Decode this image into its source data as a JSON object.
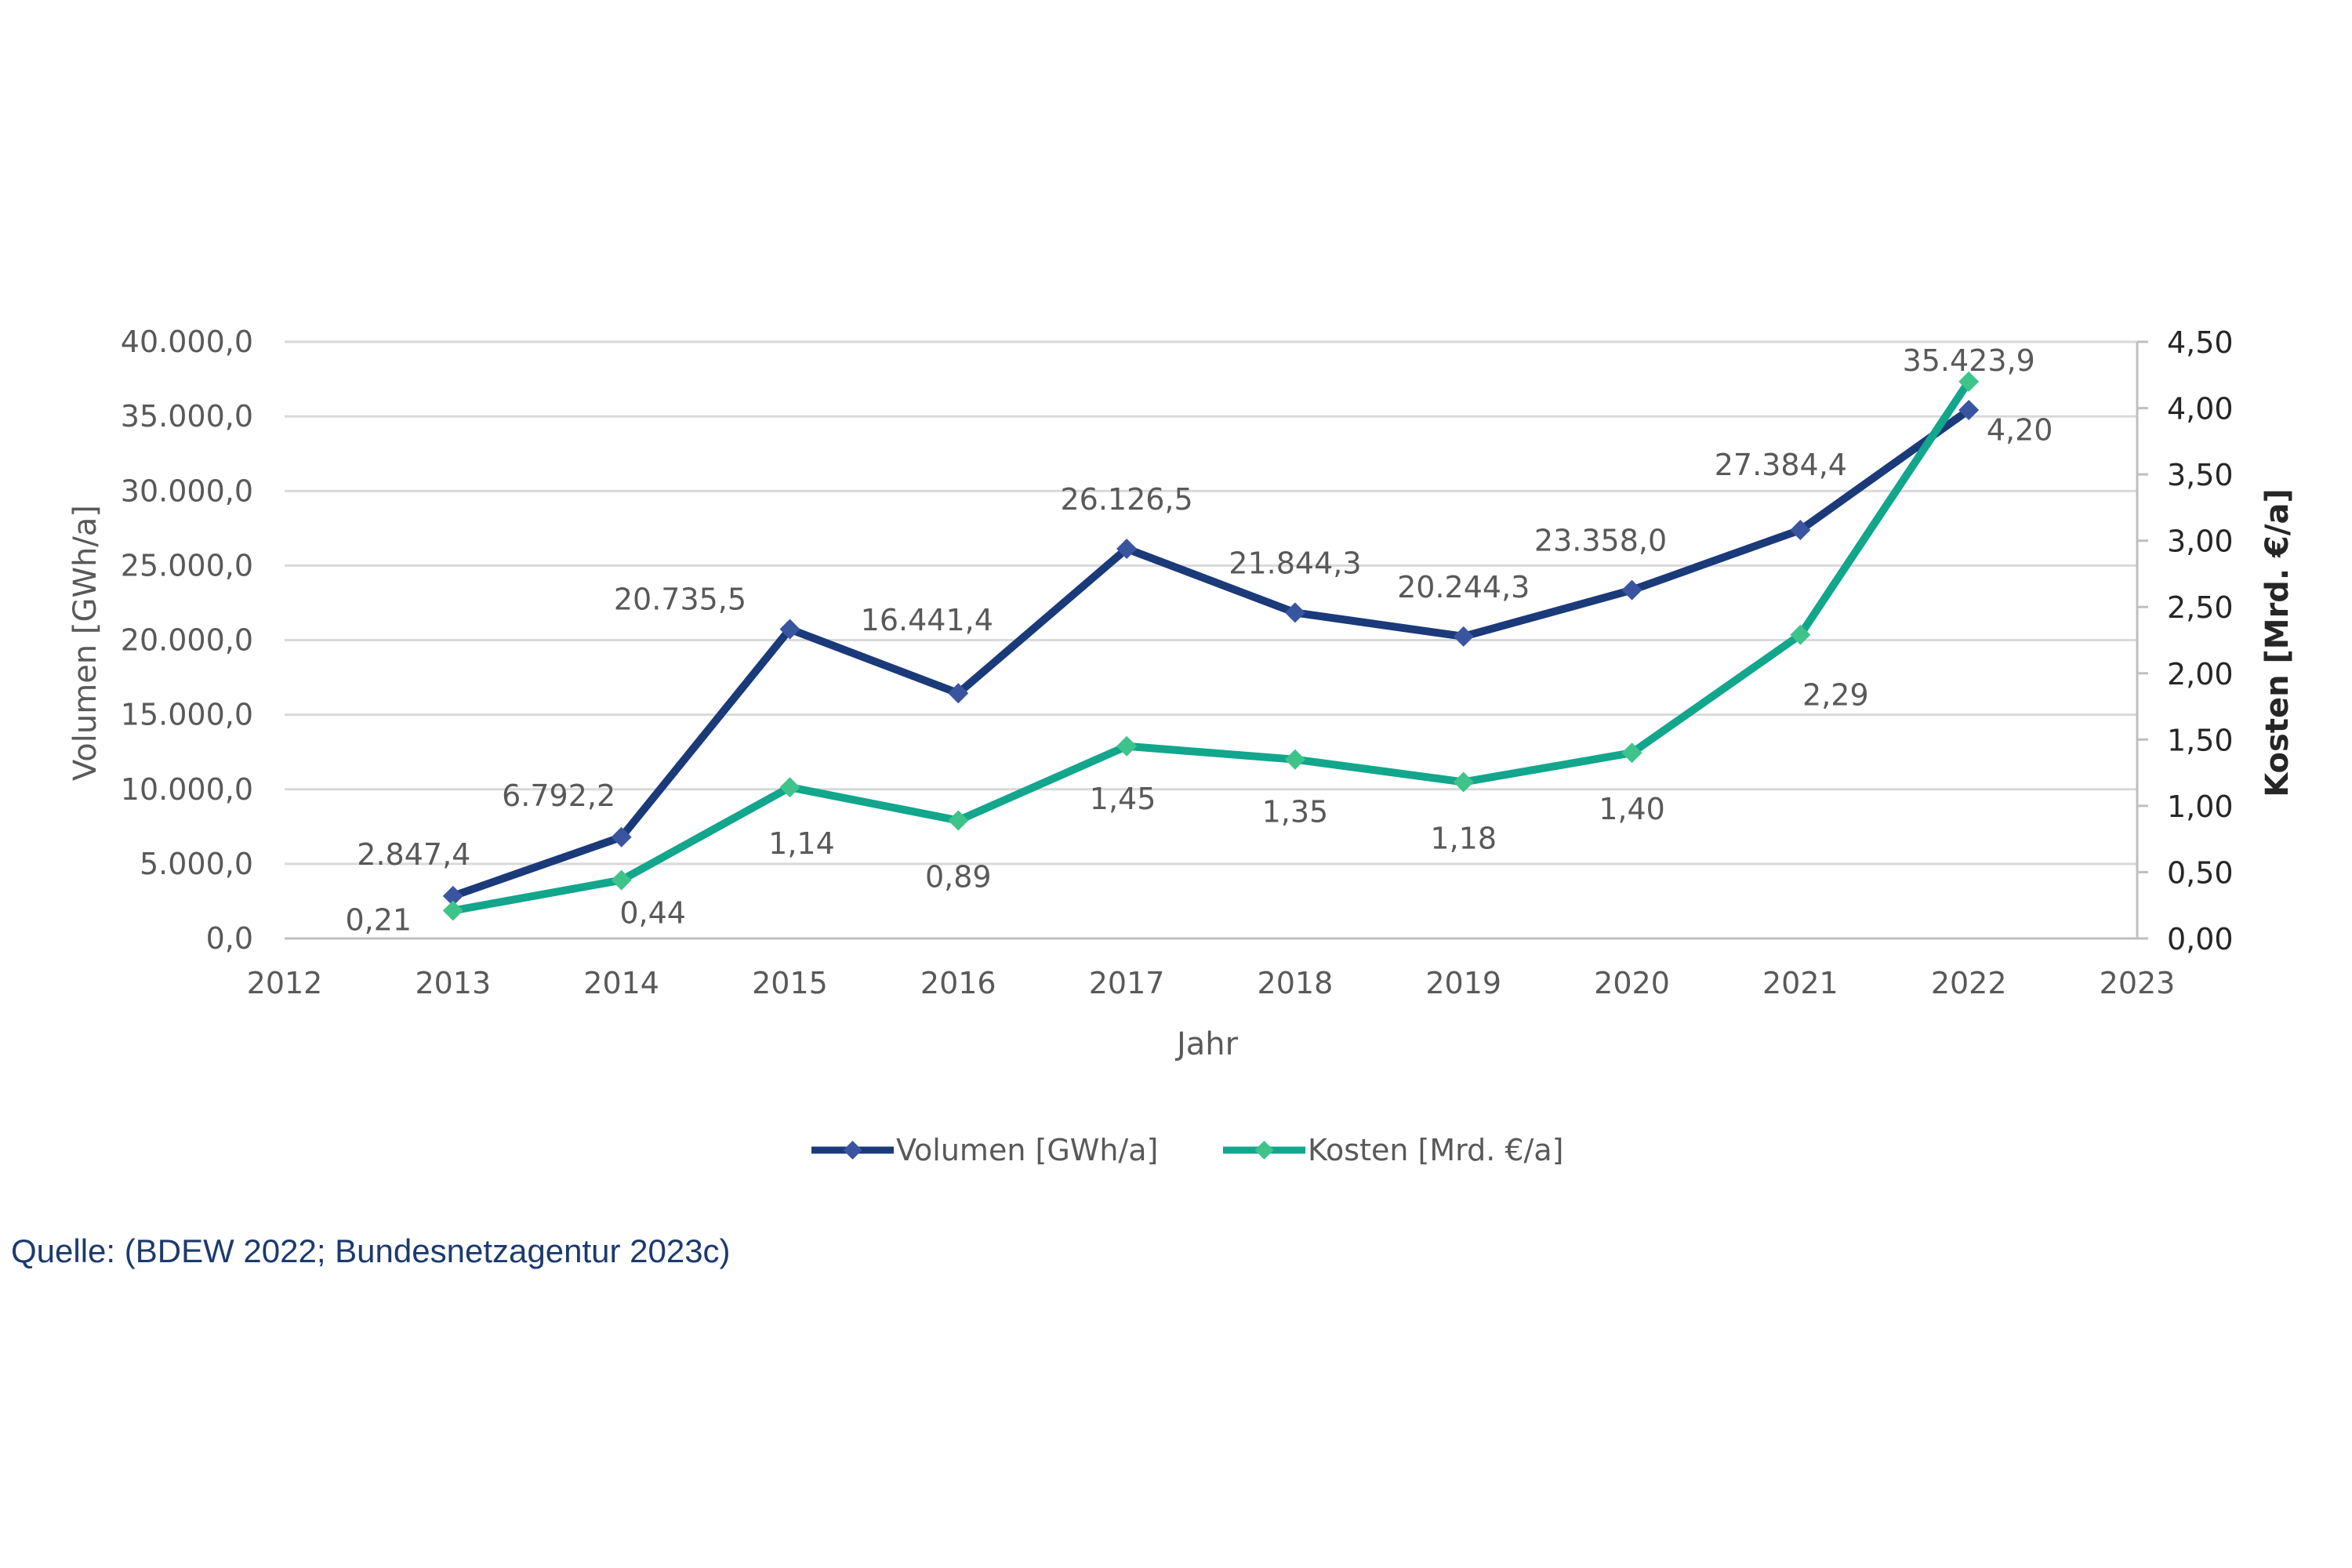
{
  "chart_data": {
    "type": "line",
    "xlabel": "Jahr",
    "x_ticks": [
      "2012",
      "2013",
      "2014",
      "2015",
      "2016",
      "2017",
      "2018",
      "2019",
      "2020",
      "2021",
      "2022",
      "2023"
    ],
    "xlim": [
      2012,
      2023
    ],
    "x": [
      2013,
      2014,
      2015,
      2016,
      2017,
      2018,
      2019,
      2020,
      2021,
      2022
    ],
    "y_left": {
      "label": "Volumen [GWh/a]",
      "lim": [
        0,
        40000
      ],
      "ticks": [
        "0,0",
        "5.000,0",
        "10.000,0",
        "15.000,0",
        "20.000,0",
        "25.000,0",
        "30.000,0",
        "35.000,0",
        "40.000,0"
      ]
    },
    "y_right": {
      "label": "Kosten [Mrd. €/a]",
      "lim": [
        0,
        4.5
      ],
      "ticks": [
        "0,00",
        "0,50",
        "1,00",
        "1,50",
        "2,00",
        "2,50",
        "3,00",
        "3,50",
        "4,00",
        "4,50"
      ]
    },
    "grid": true,
    "legend_position": "bottom",
    "series": [
      {
        "name": "Volumen [GWh/a]",
        "axis": "left",
        "color": "#1b3a7a",
        "marker_color": "#3a55a0",
        "values": [
          2847.4,
          6792.2,
          20735.5,
          16441.4,
          26126.5,
          21844.3,
          20244.3,
          23358.0,
          27384.4,
          35423.9
        ],
        "labels": [
          "2.847,4",
          "6.792,2",
          "20.735,5",
          "16.441,4",
          "26.126,5",
          "21.844,3",
          "20.244,3",
          "23.358,0",
          "27.384,4",
          "35.423,9"
        ]
      },
      {
        "name": "Kosten [Mrd. €/a]",
        "axis": "right",
        "color": "#12a68c",
        "marker_color": "#3ec48a",
        "values": [
          0.21,
          0.44,
          1.14,
          0.89,
          1.45,
          1.35,
          1.18,
          1.4,
          2.29,
          4.2
        ],
        "labels": [
          "0,21",
          "0,44",
          "1,14",
          "0,89",
          "1,45",
          "1,35",
          "1,18",
          "1,40",
          "2,29",
          "4,20"
        ]
      }
    ]
  },
  "source": "Quelle: (BDEW 2022; Bundesnetzagentur 2023c)"
}
